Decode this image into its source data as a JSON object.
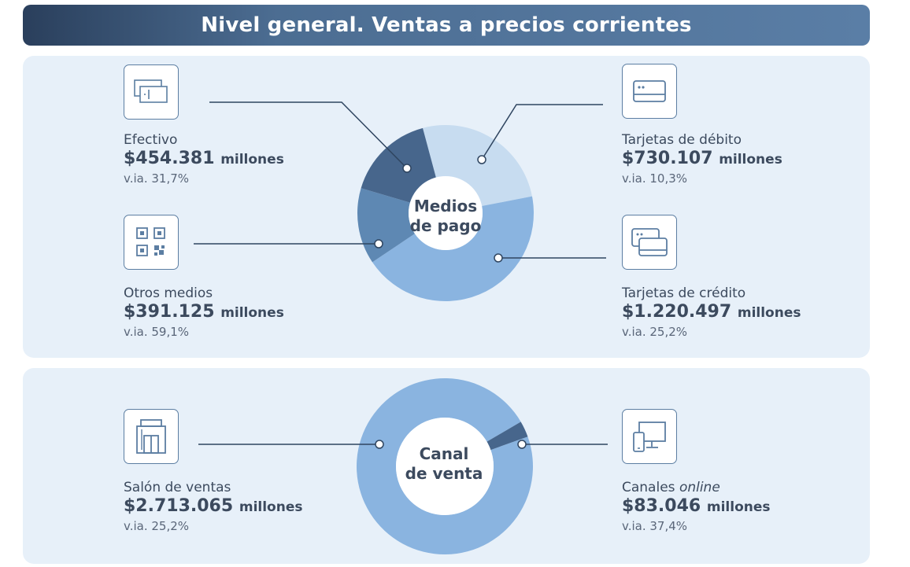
{
  "title": "Nivel general. Ventas a precios corrientes",
  "medios_center": [
    "Medios",
    "de pago"
  ],
  "canal_center": [
    "Canal",
    "de venta"
  ],
  "items": {
    "efectivo": {
      "label": "Efectivo",
      "value": "$454.381",
      "unit": "millones",
      "via": "v.ia. 31,7%",
      "icon": "cash-icon"
    },
    "debito": {
      "label": "Tarjetas de débito",
      "value": "$730.107",
      "unit": "millones",
      "via": "v.ia. 10,3%",
      "icon": "debit-card-icon"
    },
    "otros": {
      "label": "Otros medios",
      "value": "$391.125",
      "unit": "millones",
      "via": "v.ia. 59,1%",
      "icon": "qr-code-icon"
    },
    "credito": {
      "label": "Tarjetas de crédito",
      "value": "$1.220.497",
      "unit": "millones",
      "via": "v.ia. 25,2%",
      "icon": "credit-cards-icon"
    },
    "salon": {
      "label": "Salón de ventas",
      "value": "$2.713.065",
      "unit": "millones",
      "via": "v.ia. 25,2%",
      "icon": "store-icon"
    },
    "online": {
      "label_prefix": "Canales ",
      "label_italic": "online",
      "value": "$83.046",
      "unit": "millones",
      "via": "v.ia. 37,4%",
      "icon": "devices-icon"
    }
  },
  "chart_data": [
    {
      "type": "pie",
      "donut": true,
      "title": "Medios de pago",
      "units": "millones de pesos",
      "categories": [
        "Tarjetas de débito",
        "Tarjetas de crédito",
        "Otros medios",
        "Efectivo"
      ],
      "values": [
        730107,
        1220497,
        391125,
        454381
      ],
      "colors": [
        "#c7dcf0",
        "#8ab4e0",
        "#5e88b3",
        "#47668c"
      ],
      "start_angle_deg": -15
    },
    {
      "type": "pie",
      "donut": true,
      "title": "Canal de venta",
      "units": "millones de pesos",
      "categories": [
        "Salón de ventas",
        "Canales online"
      ],
      "values": [
        2713065,
        83046
      ],
      "colors": [
        "#8ab4e0",
        "#47668c"
      ],
      "start_angle_deg": 70.3
    }
  ]
}
